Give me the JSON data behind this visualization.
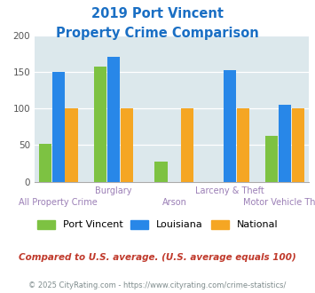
{
  "title_line1": "2019 Port Vincent",
  "title_line2": "Property Crime Comparison",
  "categories": [
    "All Property Crime",
    "Burglary",
    "Arson",
    "Larceny & Theft",
    "Motor Vehicle Theft"
  ],
  "series": {
    "Port Vincent": [
      52,
      157,
      27,
      0,
      63
    ],
    "Louisiana": [
      150,
      170,
      0,
      152,
      105
    ],
    "National": [
      100,
      100,
      100,
      100,
      100
    ]
  },
  "colors": {
    "Port Vincent": "#7dc242",
    "Louisiana": "#2887e8",
    "National": "#f5a623"
  },
  "ylim": [
    0,
    200
  ],
  "yticks": [
    0,
    50,
    100,
    150,
    200
  ],
  "x_positions": [
    0,
    1.05,
    2.2,
    3.25,
    4.3
  ],
  "bar_width": 0.25,
  "footnote1": "Compared to U.S. average. (U.S. average equals 100)",
  "footnote2": "© 2025 CityRating.com - https://www.cityrating.com/crime-statistics/",
  "title_color": "#1a6fc4",
  "bg_color": "#dce8ec",
  "footnote1_color": "#c0392b",
  "footnote2_color": "#7f8c8d",
  "xlabel_top_color": "#9b7fb6",
  "xlabel_bot_color": "#9b7fb6",
  "legend_label_color": "#444444"
}
